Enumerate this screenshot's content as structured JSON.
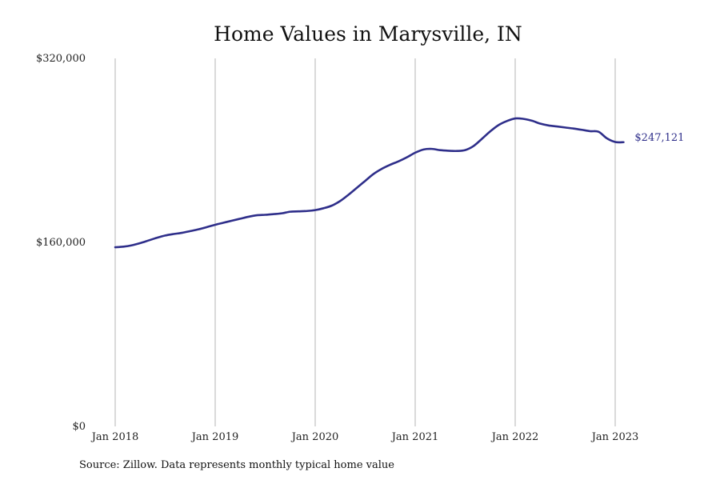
{
  "chart_data": {
    "type": "line",
    "title": "Home Values in Marysville, IN",
    "source": "Source: Zillow. Data represents monthly typical home value",
    "ylim": [
      0,
      320000
    ],
    "yticks": [
      {
        "value": 0,
        "label": "$0"
      },
      {
        "value": 160000,
        "label": "$160,000"
      },
      {
        "value": 320000,
        "label": "$320,000"
      }
    ],
    "xlim": [
      "2018-01",
      "2023-03"
    ],
    "xticks": [
      {
        "value": "2018-01",
        "label": "Jan 2018"
      },
      {
        "value": "2019-01",
        "label": "Jan 2019"
      },
      {
        "value": "2020-01",
        "label": "Jan 2020"
      },
      {
        "value": "2021-01",
        "label": "Jan 2021"
      },
      {
        "value": "2022-01",
        "label": "Jan 2022"
      },
      {
        "value": "2023-01",
        "label": "Jan 2023"
      }
    ],
    "grid": {
      "vertical": true,
      "horizontal": false
    },
    "line_color": "#2e2e8a",
    "grid_color": "#b5b5b5",
    "end_label": "$247,121",
    "series": [
      {
        "x": [
          "2018-01",
          "2018-02",
          "2018-03",
          "2018-04",
          "2018-05",
          "2018-06",
          "2018-07",
          "2018-08",
          "2018-09",
          "2018-10",
          "2018-11",
          "2018-12",
          "2019-01",
          "2019-02",
          "2019-03",
          "2019-04",
          "2019-05",
          "2019-06",
          "2019-07",
          "2019-08",
          "2019-09",
          "2019-10",
          "2019-11",
          "2019-12",
          "2020-01",
          "2020-02",
          "2020-03",
          "2020-04",
          "2020-05",
          "2020-06",
          "2020-07",
          "2020-08",
          "2020-09",
          "2020-10",
          "2020-11",
          "2020-12",
          "2021-01",
          "2021-02",
          "2021-03",
          "2021-04",
          "2021-05",
          "2021-06",
          "2021-07",
          "2021-08",
          "2021-09",
          "2021-10",
          "2021-11",
          "2021-12",
          "2022-01",
          "2022-02",
          "2022-03",
          "2022-04",
          "2022-05",
          "2022-06",
          "2022-07",
          "2022-08",
          "2022-09",
          "2022-10",
          "2022-11",
          "2022-12",
          "2023-01",
          "2023-02"
        ],
        "values": [
          155800,
          156300,
          157500,
          159400,
          161700,
          164000,
          166000,
          167300,
          168300,
          169800,
          171400,
          173300,
          175300,
          177100,
          178900,
          180600,
          182300,
          183600,
          184000,
          184600,
          185300,
          186700,
          187000,
          187300,
          188100,
          189700,
          192000,
          196000,
          201500,
          207500,
          213500,
          219500,
          224000,
          227500,
          230500,
          234000,
          238000,
          240800,
          241300,
          240200,
          239700,
          239500,
          240300,
          243800,
          250000,
          256500,
          262000,
          265500,
          267800,
          267400,
          265800,
          263300,
          261700,
          260800,
          259900,
          259000,
          257900,
          256700,
          256200,
          250500,
          247300,
          247121
        ]
      }
    ]
  }
}
